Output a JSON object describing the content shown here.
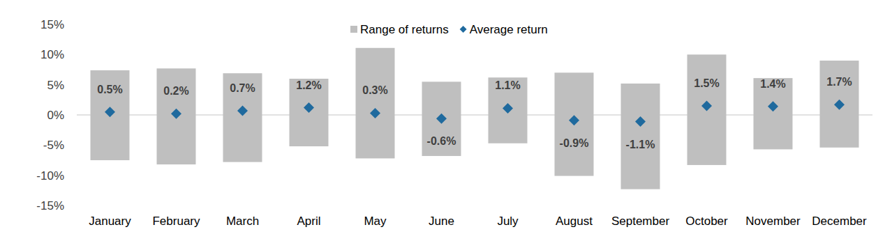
{
  "chart_data": {
    "type": "range",
    "categories": [
      "January",
      "February",
      "March",
      "April",
      "May",
      "June",
      "July",
      "August",
      "September",
      "October",
      "November",
      "December"
    ],
    "series": [
      {
        "name": "Range of returns",
        "type": "range",
        "color": "#bfbfbf",
        "low": [
          -7.5,
          -8.2,
          -7.8,
          -5.2,
          -7.2,
          -6.8,
          -4.7,
          -10.1,
          -12.3,
          -8.3,
          -5.7,
          -5.4
        ],
        "high": [
          7.4,
          7.7,
          6.9,
          6.0,
          11.1,
          5.5,
          6.2,
          7.0,
          5.2,
          10.0,
          6.1,
          9.0
        ]
      },
      {
        "name": "Average return",
        "type": "scatter",
        "marker": "diamond",
        "color": "#1f6a9e",
        "data_labels": true,
        "values": [
          0.5,
          0.2,
          0.7,
          1.2,
          0.3,
          -0.6,
          1.1,
          -0.9,
          -1.1,
          1.5,
          1.4,
          1.7
        ],
        "value_labels": [
          "0.5%",
          "0.2%",
          "0.7%",
          "1.2%",
          "0.3%",
          "-0.6%",
          "1.1%",
          "-0.9%",
          "-1.1%",
          "1.5%",
          "1.4%",
          "1.7%"
        ]
      }
    ],
    "ylim": [
      -15,
      15
    ],
    "yticks": [
      {
        "value": -15,
        "label": "-15%"
      },
      {
        "value": -10,
        "label": "-10%"
      },
      {
        "value": -5,
        "label": "-5%"
      },
      {
        "value": 0,
        "label": "0%"
      },
      {
        "value": 5,
        "label": "5%"
      },
      {
        "value": 10,
        "label": "10%"
      },
      {
        "value": 15,
        "label": "15%"
      }
    ],
    "grid": false,
    "legend": "top"
  }
}
